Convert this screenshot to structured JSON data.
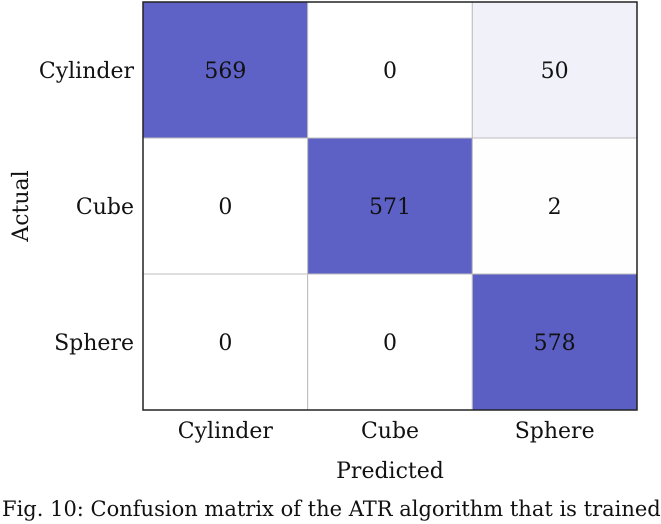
{
  "chart_data": {
    "type": "heatmap",
    "title": "",
    "xlabel": "Predicted",
    "ylabel": "Actual",
    "x_categories": [
      "Cylinder",
      "Cube",
      "Sphere"
    ],
    "y_categories": [
      "Cylinder",
      "Cube",
      "Sphere"
    ],
    "values": [
      [
        569,
        0,
        50
      ],
      [
        0,
        571,
        2
      ],
      [
        0,
        0,
        578
      ]
    ],
    "colormap": {
      "low": "#ffffff",
      "high": "#5b5fc4"
    },
    "grid": true,
    "legend": "none"
  },
  "caption": "Fig. 10: Confusion matrix of the ATR algorithm that is trained"
}
